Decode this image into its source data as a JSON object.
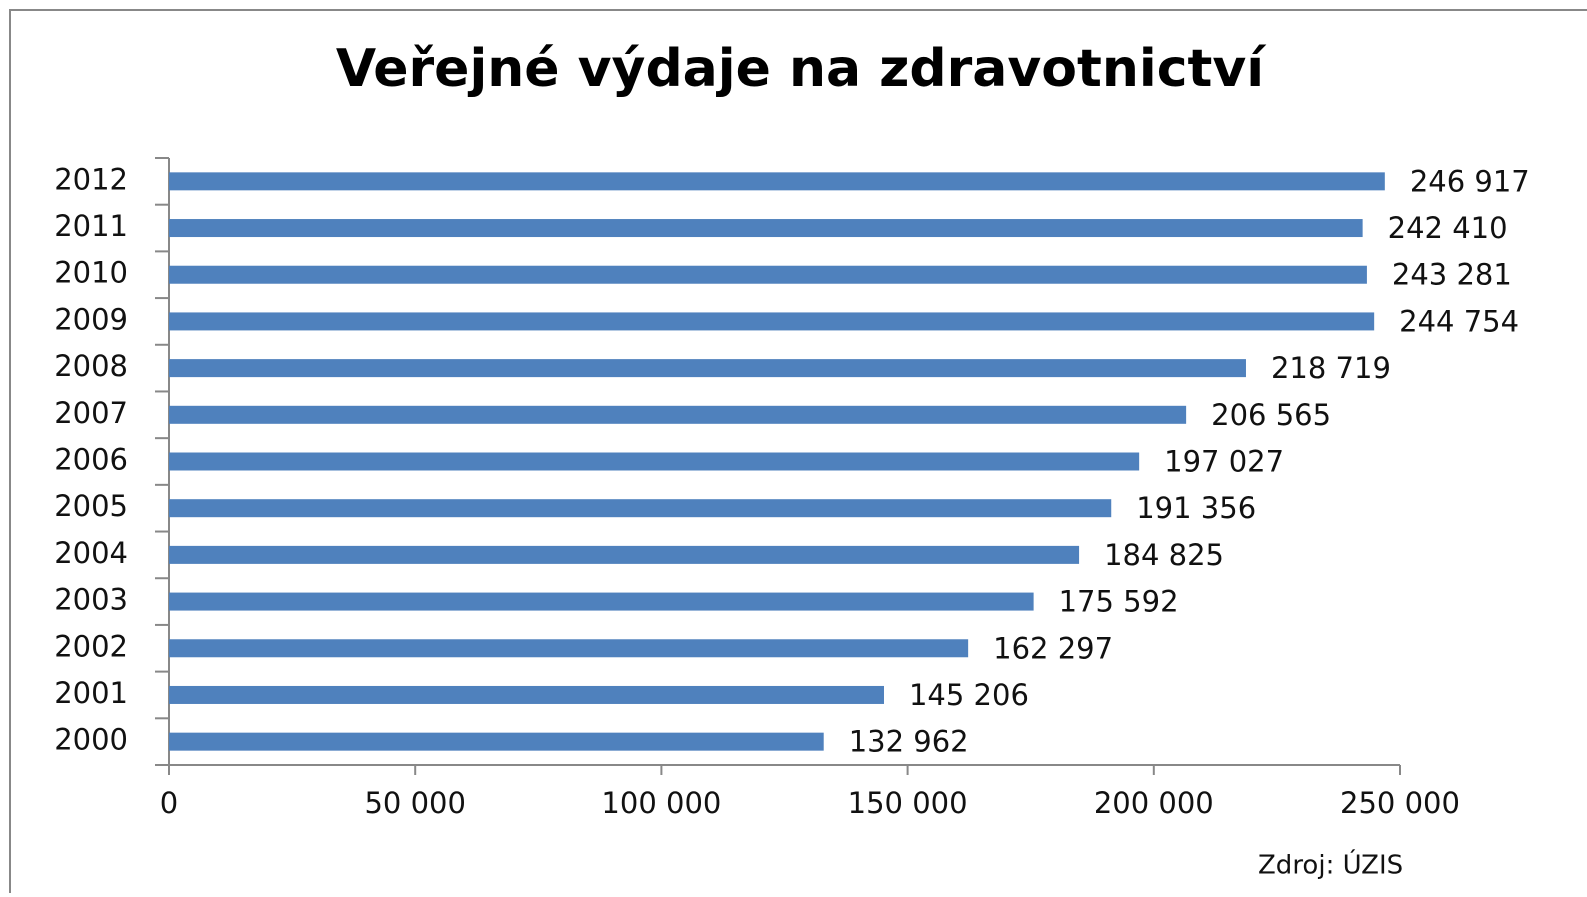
{
  "chart_data": {
    "type": "bar",
    "orientation": "horizontal",
    "title": "Veřejné výdaje na zdravotnictví",
    "source": "Zdroj: ÚZIS",
    "categories": [
      "2012",
      "2011",
      "2010",
      "2009",
      "2008",
      "2007",
      "2006",
      "2005",
      "2004",
      "2003",
      "2002",
      "2001",
      "2000"
    ],
    "values": [
      246917,
      242410,
      243281,
      244754,
      218719,
      206565,
      197027,
      191356,
      184825,
      175592,
      162297,
      145206,
      132962
    ],
    "value_labels": [
      "246 917",
      "242 410",
      "243 281",
      "244 754",
      "218 719",
      "206 565",
      "197 027",
      "191 356",
      "184 825",
      "175 592",
      "162 297",
      "145 206",
      "132 962"
    ],
    "color": "#4f81bd",
    "xlim": [
      0,
      250000
    ],
    "xticks": [
      0,
      {
        "value": 50000,
        "label": "50 000"
      },
      {
        "value": 100000,
        "label": "100 000"
      },
      {
        "value": 150000,
        "label": "150 000"
      },
      {
        "value": 200000,
        "label": "200 000"
      },
      {
        "value": 250000,
        "label": "250 000"
      }
    ],
    "grid": false
  }
}
